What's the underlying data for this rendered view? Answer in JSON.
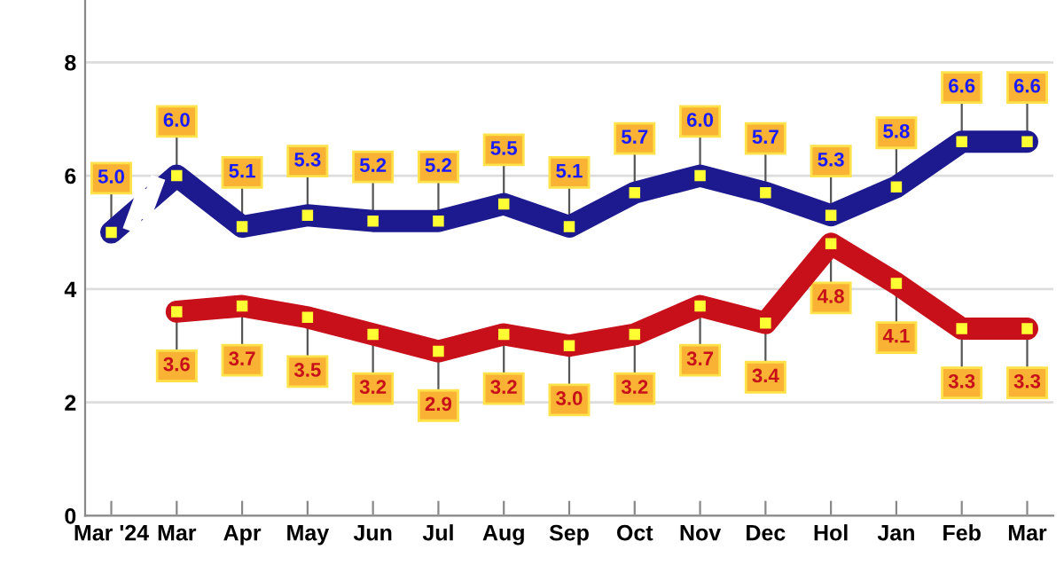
{
  "chart_data": {
    "type": "line",
    "categories": [
      "Mar '24",
      "Mar",
      "Apr",
      "May",
      "Jun",
      "Jul",
      "Aug",
      "Sep",
      "Oct",
      "Nov",
      "Dec",
      "Hol",
      "Jan",
      "Feb",
      "Mar"
    ],
    "series": [
      {
        "color": "#1c1a8e",
        "values": [
          5.0,
          6.0,
          5.1,
          5.3,
          5.2,
          5.2,
          5.5,
          5.1,
          5.7,
          6.0,
          5.7,
          5.3,
          5.8,
          6.6,
          6.6
        ],
        "value_labels": [
          "5.0",
          "6.0",
          "5.1",
          "5.3",
          "5.2",
          "5.2",
          "5.5",
          "5.1",
          "5.7",
          "6.0",
          "5.7",
          "5.3",
          "5.8",
          "6.6",
          "6.6"
        ]
      },
      {
        "color": "#c8101a",
        "values": [
          null,
          3.6,
          3.7,
          3.5,
          3.2,
          2.9,
          3.2,
          3.0,
          3.2,
          3.7,
          3.4,
          4.8,
          4.1,
          3.3,
          3.3
        ],
        "value_labels": [
          null,
          "3.6",
          "3.7",
          "3.5",
          "3.2",
          "2.9",
          "3.2",
          "3.0",
          "3.2",
          "3.7",
          "3.4",
          "4.8",
          "4.1",
          "3.3",
          "3.3"
        ]
      }
    ],
    "ylim": [
      0,
      9.1
    ],
    "yticks": [
      0,
      2,
      4,
      6,
      8
    ],
    "grid": "y",
    "marker": "square",
    "line_style": "solid"
  }
}
